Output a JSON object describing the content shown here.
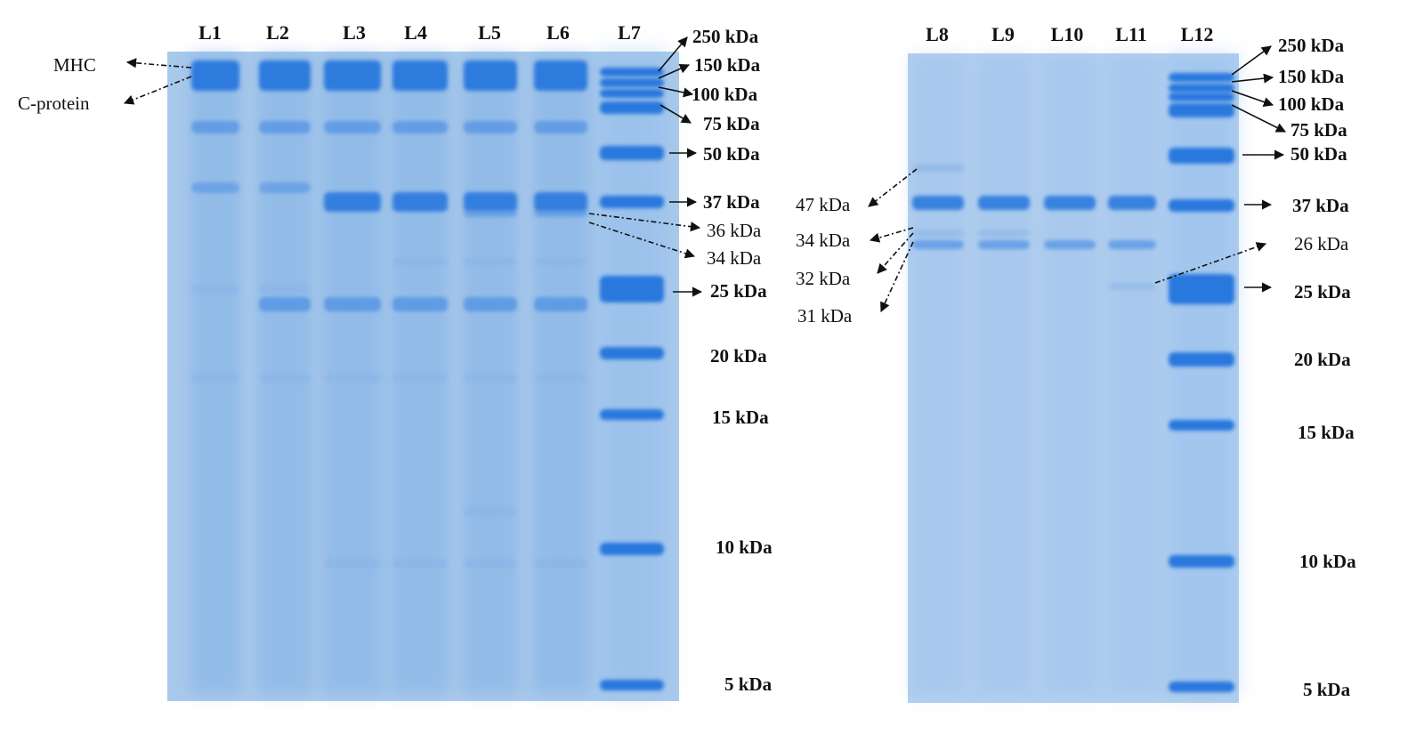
{
  "colors": {
    "gel_background": "#a9c9ea",
    "gel_light": "#c2daf3",
    "band_dark": "#1d6fdc",
    "band_mid": "#4f90e4",
    "band_faint": "#88b2e6",
    "ink": "#111111"
  },
  "left_gel": {
    "lanes": [
      "L1",
      "L2",
      "L3",
      "L4",
      "L5",
      "L6",
      "L7"
    ],
    "ladder_labels": [
      "250 kDa",
      "150 kDa",
      "100 kDa",
      "75 kDa",
      "50 kDa",
      "37 kDa",
      "25 kDa",
      "20 kDa",
      "15 kDa",
      "10 kDa",
      "5 kDa"
    ],
    "annotations": [
      "MHC",
      "C-protein",
      "36 kDa",
      "34 kDa"
    ]
  },
  "right_gel": {
    "lanes": [
      "L8",
      "L9",
      "L10",
      "L11",
      "L12"
    ],
    "ladder_labels": [
      "250 kDa",
      "150 kDa",
      "100 kDa",
      "75 kDa",
      "50 kDa",
      "37 kDa",
      "25 kDa",
      "20 kDa",
      "15 kDa",
      "10 kDa",
      "5 kDa"
    ],
    "annotations": [
      "47 kDa",
      "34 kDa",
      "32 kDa",
      "31 kDa",
      "26 kDa"
    ]
  }
}
